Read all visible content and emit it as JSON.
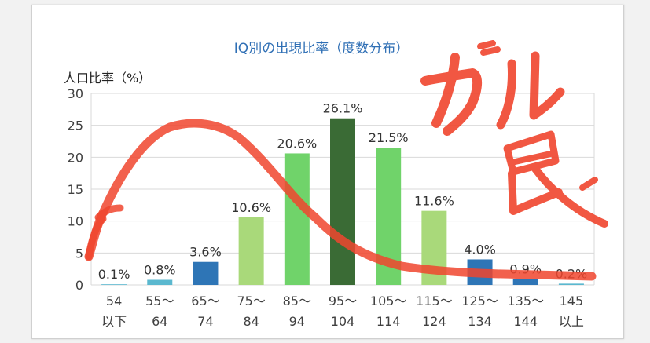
{
  "chart_data": {
    "type": "bar",
    "title": "IQ別の出現比率（度数分布）",
    "ylabel": "人口比率（%）",
    "xlabel": "",
    "ylim": [
      0,
      30
    ],
    "yticks": [
      0,
      5,
      10,
      15,
      20,
      25,
      30
    ],
    "grid": true,
    "categories": [
      [
        "54",
        "以下"
      ],
      [
        "55～",
        "64"
      ],
      [
        "65～",
        "74"
      ],
      [
        "75～",
        "84"
      ],
      [
        "85～",
        "94"
      ],
      [
        "95～",
        "104"
      ],
      [
        "105～",
        "114"
      ],
      [
        "115～",
        "124"
      ],
      [
        "125～",
        "134"
      ],
      [
        "135～",
        "144"
      ],
      [
        "145",
        "以上"
      ]
    ],
    "values": [
      0.1,
      0.8,
      3.6,
      10.6,
      20.6,
      26.1,
      21.5,
      11.6,
      4.0,
      0.9,
      0.2
    ],
    "value_labels": [
      "0.1%",
      "0.8%",
      "3.6%",
      "10.6%",
      "20.6%",
      "26.1%",
      "21.5%",
      "11.6%",
      "4.0%",
      "0.9%",
      "0.2%"
    ],
    "bar_colors": [
      "#5bb8cf",
      "#5bb8cf",
      "#2e75b6",
      "#a9d97a",
      "#70d36a",
      "#3a6b35",
      "#70d36a",
      "#a9d97a",
      "#2e75b6",
      "#2e75b6",
      "#5bb8cf"
    ]
  },
  "annotation": {
    "handwritten_text": "ガル民",
    "stroke_color": "#f0452e"
  },
  "colors": {
    "title": "#2f6fb5",
    "grid": "#d9d9d9",
    "axis_text": "#404040"
  }
}
